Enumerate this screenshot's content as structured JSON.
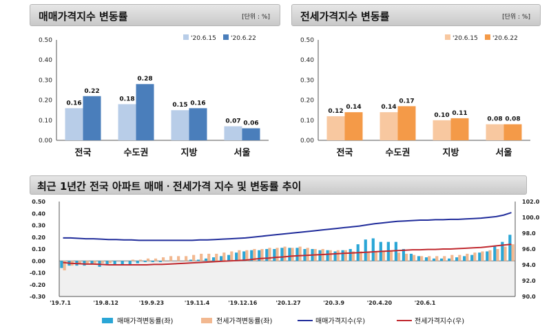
{
  "colors": {
    "sale_old": "#b8cde8",
    "sale_new": "#4a7ebb",
    "jeonse_old": "#f8c8a0",
    "jeonse_new": "#f49a48",
    "rate_sale": "#2aa6d6",
    "rate_jeonse": "#f2b890",
    "idx_sale": "#1f2b9a",
    "idx_jeonse": "#c0272d"
  },
  "chart_data": [
    {
      "type": "bar",
      "title": "매매가격지수 변동률",
      "unit": "[단위 : %]",
      "categories": [
        "전국",
        "수도권",
        "지방",
        "서울"
      ],
      "series": [
        {
          "name": "'20.6.15",
          "values": [
            0.16,
            0.18,
            0.15,
            0.07
          ]
        },
        {
          "name": "'20.6.22",
          "values": [
            0.22,
            0.28,
            0.16,
            0.06
          ]
        }
      ],
      "ylim": [
        0,
        0.5
      ],
      "yticks": [
        "0.00",
        "0.10",
        "0.20",
        "0.30",
        "0.40",
        "0.50"
      ],
      "grid": false,
      "legend": "top-right"
    },
    {
      "type": "bar",
      "title": "전세가격지수 변동률",
      "unit": "[단위 : %]",
      "categories": [
        "전국",
        "수도권",
        "지방",
        "서울"
      ],
      "series": [
        {
          "name": "'20.6.15",
          "values": [
            0.12,
            0.14,
            0.1,
            0.08
          ]
        },
        {
          "name": "'20.6.22",
          "values": [
            0.14,
            0.17,
            0.11,
            0.08
          ]
        }
      ],
      "ylim": [
        0,
        0.5
      ],
      "yticks": [
        "0.00",
        "0.10",
        "0.20",
        "0.30",
        "0.40",
        "0.50"
      ],
      "grid": false,
      "legend": "top-right"
    },
    {
      "type": "bar",
      "title": "최근 1년간 전국 아파트 매매ㆍ전세가격 지수 및 변동률 추이",
      "x_ticks": [
        "'19.7.1",
        "'19.8.12",
        "'19.9.23",
        "'19.11.4",
        "'19.12.16",
        "'20.1.27",
        "'20.3.9",
        "'20.4.20",
        "'20.6.1"
      ],
      "y_left_ticks": [
        "-0.30",
        "-0.20",
        "-0.10",
        "0.00",
        "0.10",
        "0.20",
        "0.30",
        "0.40",
        "0.50"
      ],
      "y_right_ticks": [
        "90.0",
        "92.0",
        "94.0",
        "96.0",
        "98.0",
        "100.0",
        "102.0"
      ],
      "ylim_left": [
        -0.3,
        0.5
      ],
      "ylim_right": [
        90,
        102
      ],
      "legend": "bottom",
      "series": [
        {
          "name": "매매가격변동률(좌)",
          "kind": "bar",
          "axis": "left",
          "values": [
            -0.06,
            -0.04,
            -0.04,
            -0.04,
            -0.03,
            -0.05,
            -0.03,
            -0.03,
            -0.03,
            -0.03,
            -0.02,
            -0.01,
            -0.01,
            -0.01,
            0.0,
            0.0,
            0.0,
            0.01,
            0.01,
            0.02,
            0.03,
            0.04,
            0.05,
            0.07,
            0.08,
            0.09,
            0.09,
            0.1,
            0.1,
            0.11,
            0.11,
            0.11,
            0.1,
            0.1,
            0.09,
            0.09,
            0.08,
            0.09,
            0.1,
            0.14,
            0.18,
            0.19,
            0.16,
            0.16,
            0.16,
            0.1,
            0.06,
            0.04,
            0.03,
            0.02,
            0.02,
            0.02,
            0.03,
            0.04,
            0.05,
            0.07,
            0.08,
            0.12,
            0.16,
            0.22
          ]
        },
        {
          "name": "전세가격변동률(좌)",
          "kind": "bar",
          "axis": "left",
          "values": [
            -0.08,
            -0.04,
            -0.03,
            -0.03,
            -0.02,
            -0.02,
            -0.02,
            0.0,
            0.0,
            0.01,
            0.01,
            0.02,
            0.02,
            0.03,
            0.04,
            0.04,
            0.04,
            0.05,
            0.06,
            0.06,
            0.06,
            0.07,
            0.08,
            0.09,
            0.09,
            0.1,
            0.1,
            0.11,
            0.11,
            0.12,
            0.11,
            0.12,
            0.11,
            0.1,
            0.1,
            0.09,
            0.09,
            0.09,
            0.08,
            0.08,
            0.08,
            0.08,
            0.08,
            0.08,
            0.07,
            0.06,
            0.05,
            0.04,
            0.04,
            0.04,
            0.04,
            0.05,
            0.05,
            0.06,
            0.07,
            0.08,
            0.09,
            0.1,
            0.12,
            0.14
          ]
        },
        {
          "name": "매매가격지수(우)",
          "kind": "line",
          "axis": "right",
          "values": [
            97.4,
            97.4,
            97.35,
            97.3,
            97.3,
            97.25,
            97.2,
            97.2,
            97.15,
            97.15,
            97.1,
            97.1,
            97.1,
            97.1,
            97.1,
            97.1,
            97.1,
            97.1,
            97.15,
            97.15,
            97.2,
            97.25,
            97.3,
            97.35,
            97.4,
            97.5,
            97.6,
            97.7,
            97.8,
            97.9,
            98.0,
            98.1,
            98.2,
            98.3,
            98.4,
            98.5,
            98.6,
            98.7,
            98.8,
            98.9,
            99.05,
            99.2,
            99.3,
            99.4,
            99.5,
            99.55,
            99.6,
            99.65,
            99.65,
            99.7,
            99.7,
            99.75,
            99.75,
            99.8,
            99.85,
            99.9,
            100.0,
            100.1,
            100.3,
            100.6
          ]
        },
        {
          "name": "전세가격지수(우)",
          "kind": "line",
          "axis": "right",
          "values": [
            94.3,
            94.2,
            94.15,
            94.1,
            94.1,
            94.05,
            94.0,
            94.0,
            94.0,
            94.0,
            94.0,
            94.0,
            94.05,
            94.05,
            94.1,
            94.15,
            94.2,
            94.25,
            94.3,
            94.35,
            94.4,
            94.45,
            94.5,
            94.55,
            94.6,
            94.7,
            94.8,
            94.85,
            94.95,
            95.0,
            95.1,
            95.15,
            95.2,
            95.25,
            95.3,
            95.35,
            95.4,
            95.45,
            95.5,
            95.55,
            95.6,
            95.65,
            95.7,
            95.75,
            95.8,
            95.85,
            95.9,
            95.9,
            95.95,
            95.95,
            96.0,
            96.0,
            96.05,
            96.1,
            96.15,
            96.2,
            96.3,
            96.4,
            96.5,
            96.6
          ]
        }
      ]
    }
  ]
}
